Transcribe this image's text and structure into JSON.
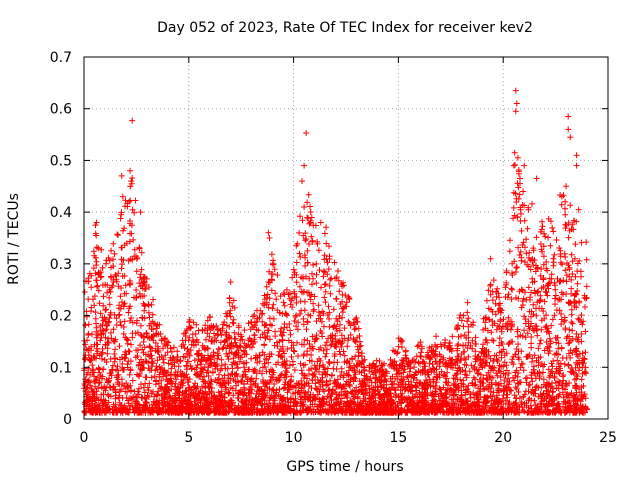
{
  "chart_data": {
    "type": "scatter",
    "title": "Day 052 of 2023, Rate Of TEC Index for receiver kev2",
    "xlabel": "GPS time / hours",
    "ylabel": "ROTI / TECUs",
    "xlim": [
      0,
      25
    ],
    "ylim": [
      0,
      0.7
    ],
    "xticks": [
      0,
      5,
      10,
      15,
      20,
      25
    ],
    "yticks": [
      0,
      0.1,
      0.2,
      0.3,
      0.4,
      0.5,
      0.6,
      0.7
    ],
    "xtick_labels": [
      "0",
      "5",
      "10",
      "15",
      "20",
      "25"
    ],
    "ytick_labels": [
      "0",
      "0.1",
      "0.2",
      "0.3",
      "0.4",
      "0.5",
      "0.6",
      "0.7"
    ],
    "grid": true,
    "marker": "plus",
    "color": "#ff0000",
    "envelope": {
      "x": [
        0,
        0.5,
        1,
        1.5,
        2,
        2.3,
        2.6,
        3,
        3.5,
        4,
        4.5,
        5,
        5.5,
        6,
        6.5,
        7,
        7.5,
        8,
        8.5,
        9,
        9.5,
        10,
        10.5,
        11,
        11.5,
        12,
        12.5,
        13,
        13.5,
        14,
        14.5,
        15,
        15.5,
        16,
        16.5,
        17,
        17.5,
        18,
        18.5,
        19,
        19.5,
        20,
        20.5,
        21,
        21.5,
        22,
        22.5,
        23,
        23.5,
        24
      ],
      "y": [
        0.25,
        0.38,
        0.3,
        0.36,
        0.47,
        0.48,
        0.4,
        0.28,
        0.2,
        0.15,
        0.13,
        0.2,
        0.18,
        0.2,
        0.17,
        0.25,
        0.18,
        0.2,
        0.22,
        0.35,
        0.24,
        0.3,
        0.48,
        0.38,
        0.38,
        0.3,
        0.25,
        0.2,
        0.1,
        0.12,
        0.1,
        0.17,
        0.12,
        0.15,
        0.14,
        0.16,
        0.15,
        0.22,
        0.2,
        0.18,
        0.3,
        0.2,
        0.5,
        0.47,
        0.4,
        0.38,
        0.43,
        0.45,
        0.38,
        0.35
      ]
    },
    "highlights": [
      {
        "x": 2.3,
        "y": 0.577
      },
      {
        "x": 2.2,
        "y": 0.48
      },
      {
        "x": 2.25,
        "y": 0.46
      },
      {
        "x": 1.8,
        "y": 0.47
      },
      {
        "x": 1.85,
        "y": 0.43
      },
      {
        "x": 2.15,
        "y": 0.42
      },
      {
        "x": 0.6,
        "y": 0.38
      },
      {
        "x": 0.55,
        "y": 0.375
      },
      {
        "x": 2.7,
        "y": 0.4
      },
      {
        "x": 10.6,
        "y": 0.553
      },
      {
        "x": 10.5,
        "y": 0.49
      },
      {
        "x": 10.4,
        "y": 0.46
      },
      {
        "x": 10.5,
        "y": 0.41
      },
      {
        "x": 8.8,
        "y": 0.36
      },
      {
        "x": 8.85,
        "y": 0.35
      },
      {
        "x": 11.3,
        "y": 0.38
      },
      {
        "x": 20.6,
        "y": 0.635
      },
      {
        "x": 20.65,
        "y": 0.61
      },
      {
        "x": 20.6,
        "y": 0.595
      },
      {
        "x": 20.55,
        "y": 0.515
      },
      {
        "x": 20.7,
        "y": 0.505
      },
      {
        "x": 21,
        "y": 0.49
      },
      {
        "x": 20.8,
        "y": 0.465
      },
      {
        "x": 20.95,
        "y": 0.44
      },
      {
        "x": 21.6,
        "y": 0.465
      },
      {
        "x": 23.1,
        "y": 0.585
      },
      {
        "x": 23.1,
        "y": 0.56
      },
      {
        "x": 23.2,
        "y": 0.545
      },
      {
        "x": 23.5,
        "y": 0.51
      },
      {
        "x": 23.5,
        "y": 0.49
      },
      {
        "x": 23,
        "y": 0.45
      },
      {
        "x": 22.8,
        "y": 0.43
      },
      {
        "x": 23.6,
        "y": 0.405
      },
      {
        "x": 19.4,
        "y": 0.31
      },
      {
        "x": 18.3,
        "y": 0.225
      },
      {
        "x": 7,
        "y": 0.265
      },
      {
        "x": 16.8,
        "y": 0.16
      }
    ]
  }
}
